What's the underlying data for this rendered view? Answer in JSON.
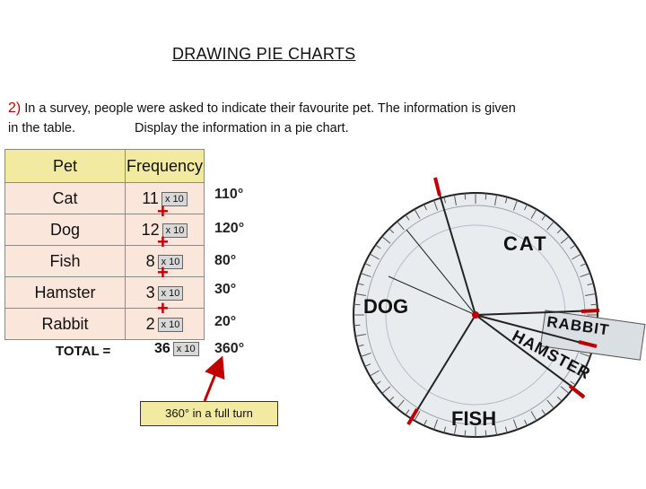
{
  "title": "DRAWING PIE CHARTS",
  "question": {
    "number": "2)",
    "line1": "In a survey, people were asked to indicate their favourite pet. The information is given",
    "line2a": "in the table.",
    "line2b": "Display the information in a pie chart."
  },
  "table": {
    "headers": [
      "Pet",
      "Frequency"
    ],
    "rows": [
      {
        "pet": "Cat",
        "freq": "11",
        "mult": "x 10",
        "deg": "110°"
      },
      {
        "pet": "Dog",
        "freq": "12",
        "mult": "x 10",
        "deg": "120°"
      },
      {
        "pet": "Fish",
        "freq": "8",
        "mult": "x 10",
        "deg": "80°"
      },
      {
        "pet": "Hamster",
        "freq": "3",
        "mult": "x 10",
        "deg": "30°"
      },
      {
        "pet": "Rabbit",
        "freq": "2",
        "mult": "x 10",
        "deg": "20°"
      }
    ],
    "plus_symbol": "+",
    "total_label": "TOTAL =",
    "total_value": "36",
    "total_mult": "x 10",
    "total_deg": "360°"
  },
  "note": "360° in a full turn",
  "pie_labels": {
    "cat": "CAT",
    "dog": "DOG",
    "fish": "FISH",
    "rabbit": "RABBIT",
    "hamster": "HAMSTER"
  },
  "colors": {
    "accent": "#c00000",
    "header_bg": "#f2eaa0",
    "row_bg": "#fbe6dc",
    "deg_color": "#222222"
  }
}
